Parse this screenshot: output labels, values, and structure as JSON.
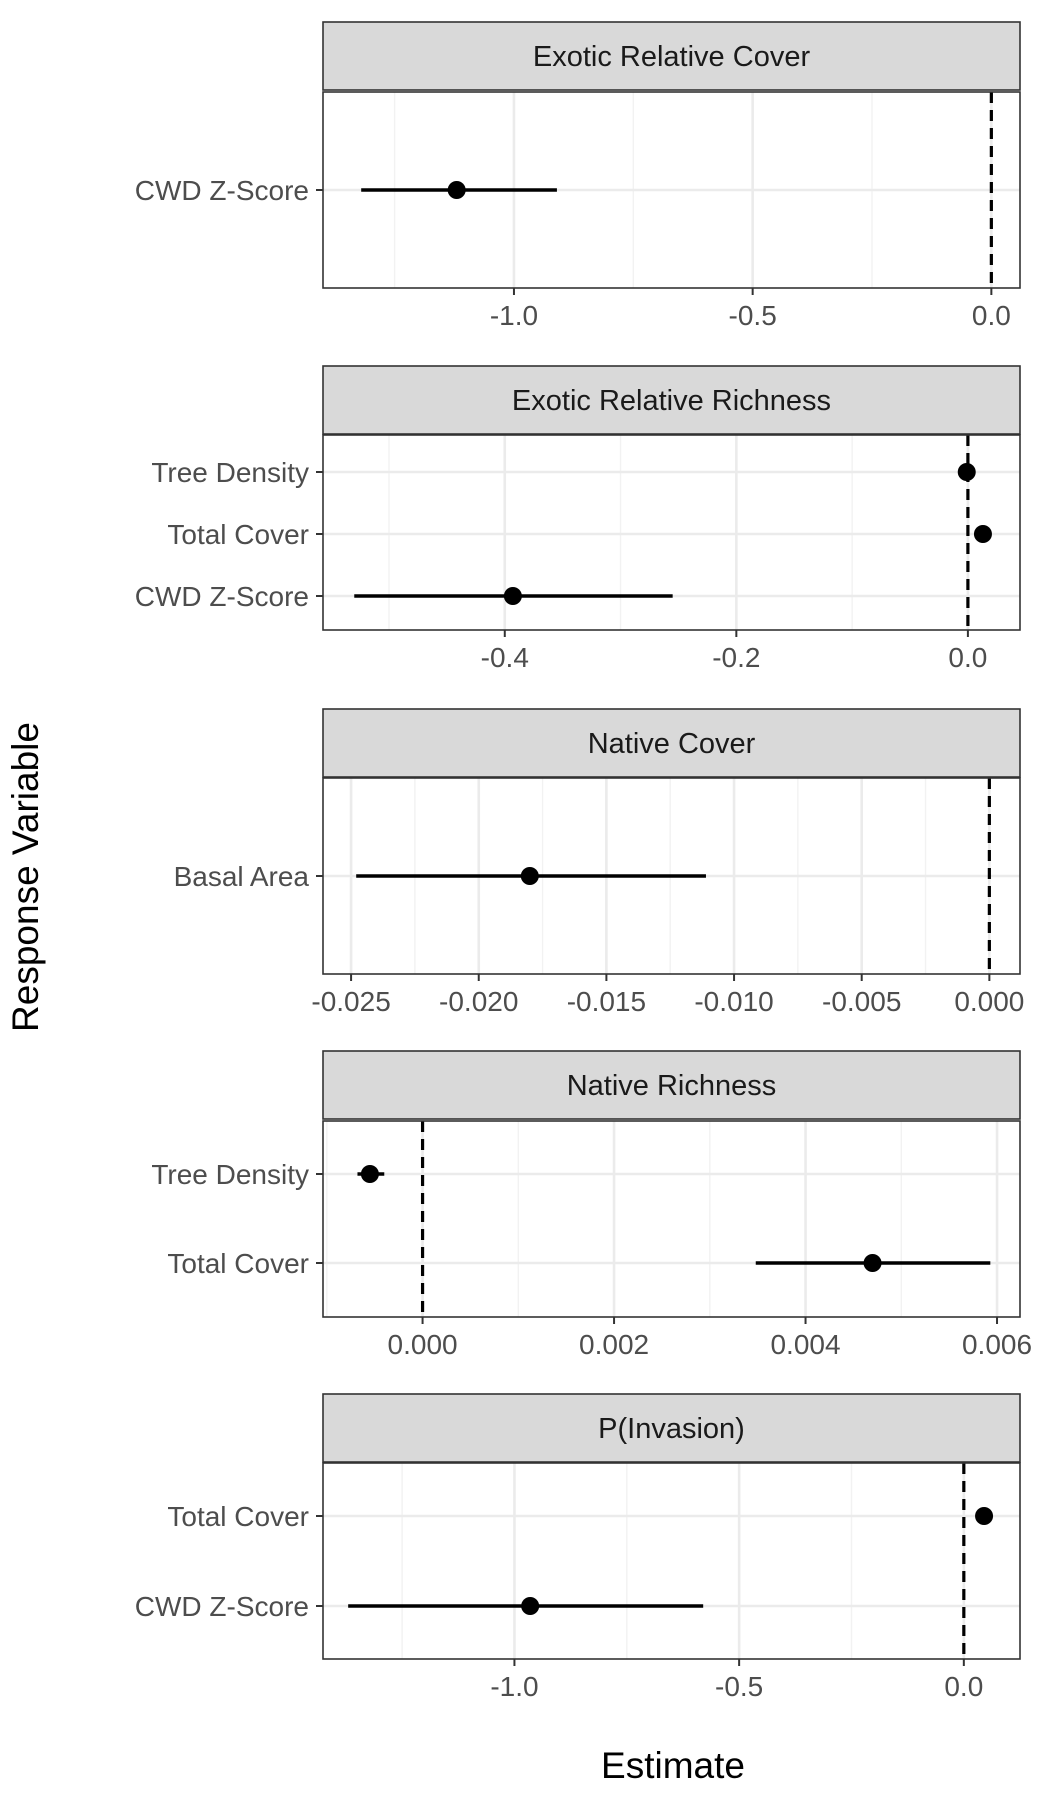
{
  "axes": {
    "xlabel": "Estimate",
    "ylabel": "Response Variable"
  },
  "colors": {
    "strip_fill": "#d9d9d9",
    "panel_border": "#333333",
    "grid_major": "#ebebeb",
    "grid_minor": "#f2f2f2",
    "point": "#000000",
    "reference_line": "#000000"
  },
  "chart_data": [
    {
      "type": "scatter",
      "title": "Exotic Relative Cover",
      "categories": [
        "CWD Z-Score"
      ],
      "estimates": [
        -1.12
      ],
      "lower": [
        -1.32
      ],
      "upper": [
        -0.91
      ],
      "reference_line": 0,
      "xlim": [
        -1.4,
        0.06
      ],
      "xticks": [
        -1.0,
        -0.5,
        0.0
      ],
      "xtick_labels": [
        "-1.0",
        "-0.5",
        "0.0"
      ],
      "grid": true
    },
    {
      "type": "scatter",
      "title": "Exotic Relative Richness",
      "categories": [
        "CWD Z-Score",
        "Total Cover",
        "Tree Density"
      ],
      "estimates": [
        -0.393,
        0.013,
        -0.001
      ],
      "lower": [
        -0.53,
        0.013,
        -0.001
      ],
      "upper": [
        -0.255,
        0.013,
        -0.001
      ],
      "reference_line": 0,
      "xlim": [
        -0.557,
        0.045
      ],
      "xticks": [
        -0.4,
        -0.2,
        0.0
      ],
      "xtick_labels": [
        "-0.4",
        "-0.2",
        "0.0"
      ],
      "grid": true
    },
    {
      "type": "scatter",
      "title": "Native Cover",
      "categories": [
        "Basal Area"
      ],
      "estimates": [
        -0.018
      ],
      "lower": [
        -0.0248
      ],
      "upper": [
        -0.0111
      ],
      "reference_line": 0,
      "xlim": [
        -0.0261,
        0.0012
      ],
      "xticks": [
        -0.025,
        -0.02,
        -0.015,
        -0.01,
        -0.005,
        0.0
      ],
      "xtick_labels": [
        "-0.025",
        "-0.020",
        "-0.015",
        "-0.010",
        "-0.005",
        "0.000"
      ],
      "grid": true
    },
    {
      "type": "scatter",
      "title": "Native Richness",
      "categories": [
        "Total Cover",
        "Tree Density"
      ],
      "estimates": [
        0.0047,
        -0.00055
      ],
      "lower": [
        0.00348,
        -0.00068
      ],
      "upper": [
        0.00593,
        -0.0004
      ],
      "reference_line": 0,
      "xlim": [
        -0.00104,
        0.00624
      ],
      "xticks": [
        0.0,
        0.002,
        0.004,
        0.006
      ],
      "xtick_labels": [
        "0.000",
        "0.002",
        "0.004",
        "0.006"
      ],
      "grid": true
    },
    {
      "type": "scatter",
      "title": "P(Invasion)",
      "categories": [
        "CWD Z-Score",
        "Total Cover"
      ],
      "estimates": [
        -0.965,
        0.045
      ],
      "lower": [
        -1.37,
        0.045
      ],
      "upper": [
        -0.58,
        0.045
      ],
      "reference_line": 0,
      "xlim": [
        -1.426,
        0.125
      ],
      "xticks": [
        -1.0,
        -0.5,
        0.0
      ],
      "xtick_labels": [
        "-1.0",
        "-0.5",
        "0.0"
      ],
      "grid": true
    }
  ]
}
